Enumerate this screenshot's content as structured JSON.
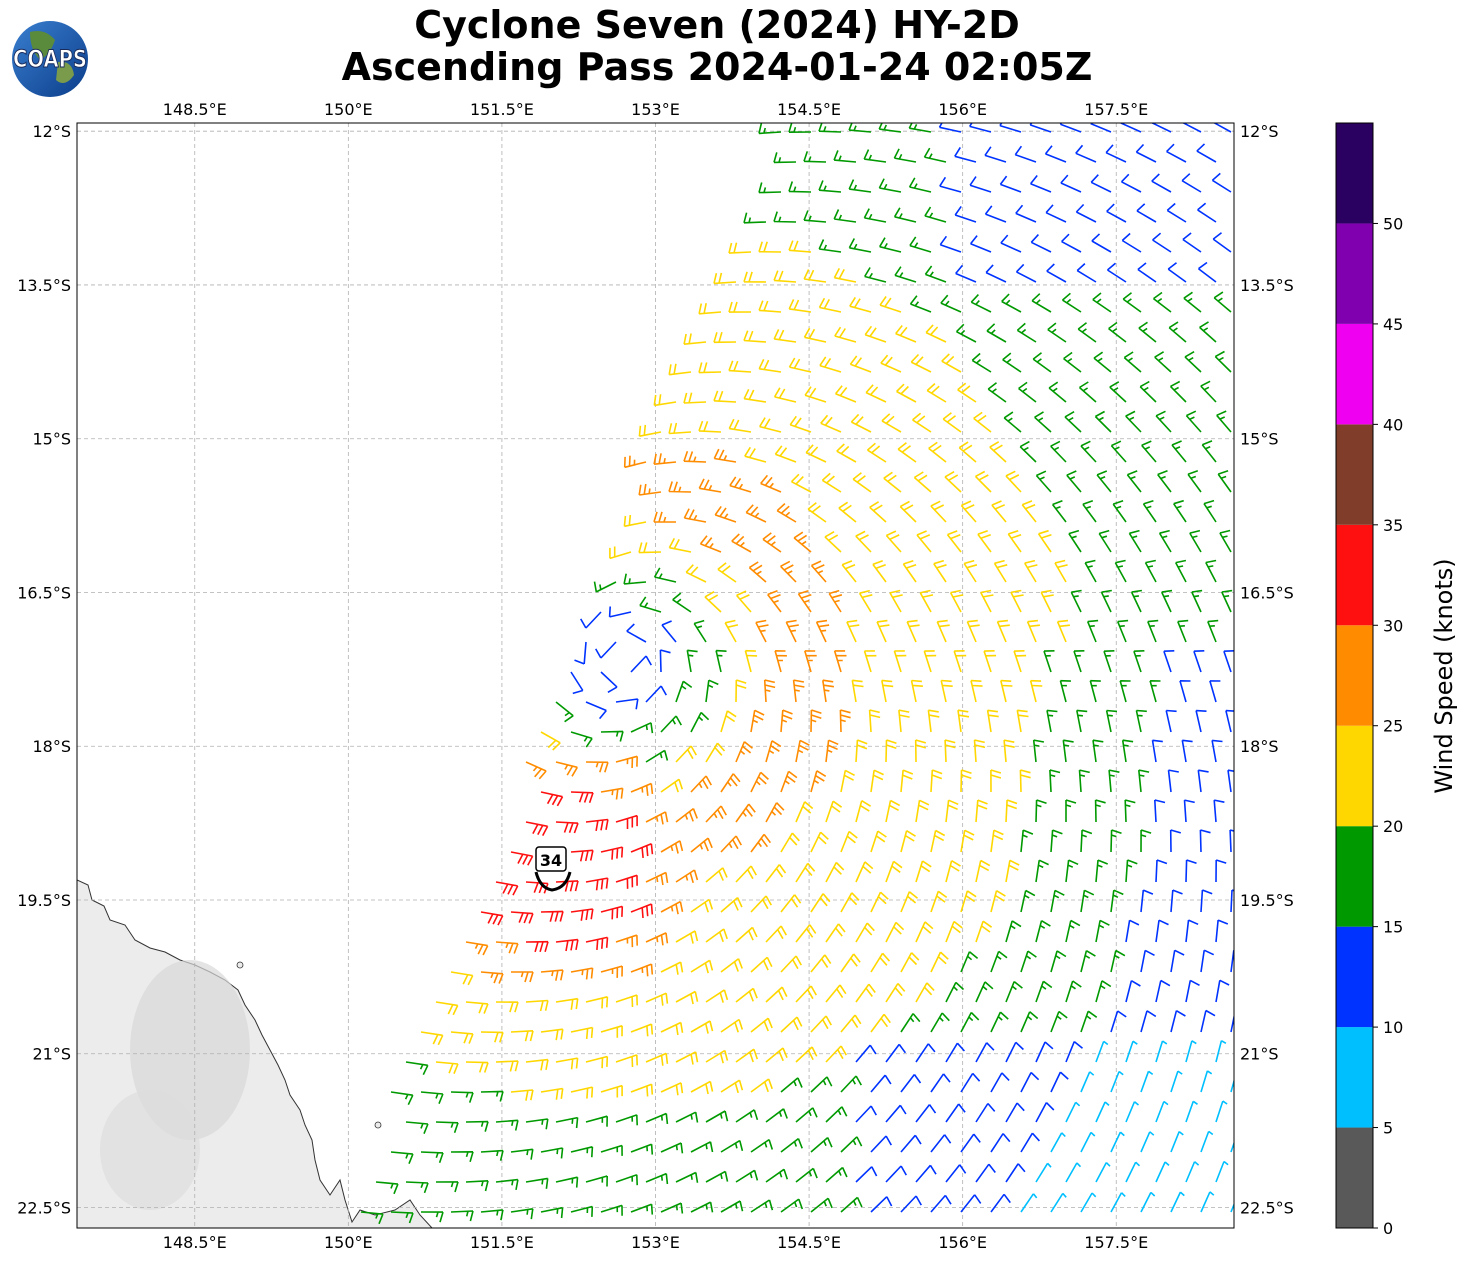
{
  "title": {
    "line1": "Cyclone Seven (2024) HY-2D",
    "line2": "Ascending Pass 2024-01-24 02:05Z"
  },
  "logo": {
    "text": "COAPS",
    "icon": "globe-icon"
  },
  "axes": {
    "lon_ticks": [
      "148.5°E",
      "150°E",
      "151.5°E",
      "153°E",
      "154.5°E",
      "156°E",
      "157.5°E"
    ],
    "lat_ticks": [
      "12°S",
      "13.5°S",
      "15°S",
      "16.5°S",
      "18°S",
      "19.5°S",
      "21°S",
      "22.5°S"
    ],
    "lon_values": [
      148.5,
      150,
      151.5,
      153,
      154.5,
      156,
      157.5
    ],
    "lat_values": [
      -12,
      -13.5,
      -15,
      -16.5,
      -18,
      -19.5,
      -21,
      -22.5
    ],
    "lon_range": [
      147.35,
      158.65
    ],
    "lat_range": [
      -22.7,
      -11.92
    ],
    "grid": true
  },
  "storm_marker": {
    "label": "34"
  },
  "colorbar": {
    "label": "Wind Speed (knots)",
    "ticks": [
      "0",
      "5",
      "10",
      "15",
      "20",
      "25",
      "30",
      "35",
      "40",
      "45",
      "50"
    ],
    "bands": [
      {
        "min": 0,
        "max": 5,
        "color": "#595959"
      },
      {
        "min": 5,
        "max": 10,
        "color": "#00bfff"
      },
      {
        "min": 10,
        "max": 15,
        "color": "#0033ff"
      },
      {
        "min": 15,
        "max": 20,
        "color": "#009900"
      },
      {
        "min": 20,
        "max": 25,
        "color": "#ffd700"
      },
      {
        "min": 25,
        "max": 30,
        "color": "#ff8c00"
      },
      {
        "min": 30,
        "max": 35,
        "color": "#ff1010"
      },
      {
        "min": 35,
        "max": 40,
        "color": "#803e2a"
      },
      {
        "min": 40,
        "max": 45,
        "color": "#f000f0"
      },
      {
        "min": 45,
        "max": 50,
        "color": "#8000b0"
      },
      {
        "min": 50,
        "max": 55,
        "color": "#2a0060"
      }
    ]
  }
}
